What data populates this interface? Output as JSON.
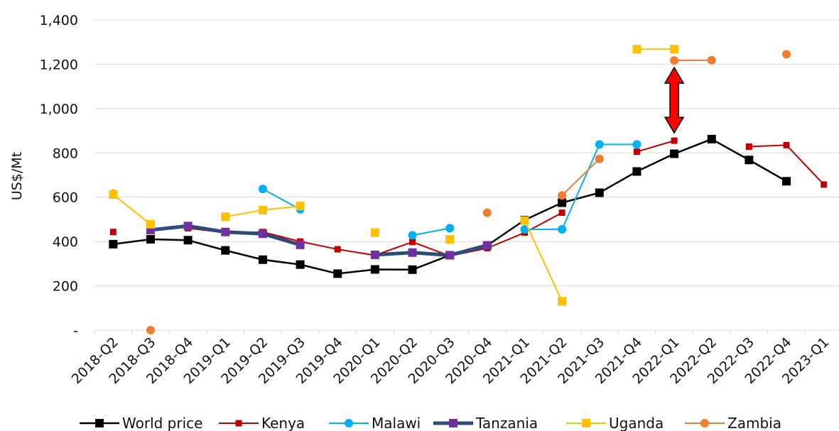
{
  "chart_data": {
    "type": "line",
    "title": "",
    "xlabel": "",
    "ylabel": "US$/Mt",
    "ylim": [
      0,
      1400
    ],
    "yticks": [
      0,
      200,
      400,
      600,
      800,
      1000,
      1200,
      1400
    ],
    "ytick_labels": [
      "-",
      "200",
      "400",
      "600",
      "800",
      "1,000",
      "1,200",
      "1,400"
    ],
    "grid": "horizontal",
    "legend_position": "bottom",
    "categories": [
      "2018-Q2",
      "2018-Q3",
      "2018-Q4",
      "2019-Q1",
      "2019-Q2",
      "2019-Q3",
      "2019-Q4",
      "2020-Q1",
      "2020-Q2",
      "2020-Q3",
      "2020-Q4",
      "2021-Q1",
      "2021-Q2",
      "2021-Q3",
      "2021-Q4",
      "2022-Q1",
      "2022-Q2",
      "2022-Q3",
      "2022-Q4",
      "2023-Q1"
    ],
    "series": [
      {
        "name": "World price",
        "color": "#000000",
        "marker": "square",
        "width": 2.5,
        "values": [
          388,
          410,
          406,
          360,
          318,
          296,
          255,
          274,
          273,
          338,
          382,
          497,
          575,
          620,
          716,
          796,
          862,
          768,
          672,
          null
        ]
      },
      {
        "name": "Kenya",
        "color": "#C00000",
        "marker": "square-small",
        "width": 2,
        "values": [
          443,
          null,
          460,
          440,
          443,
          400,
          365,
          338,
          398,
          335,
          370,
          440,
          530,
          null,
          805,
          855,
          null,
          828,
          835,
          657
        ]
      },
      {
        "name": "Malawi",
        "color": "#00B0F0",
        "marker": "circle",
        "width": 2,
        "values": [
          615,
          null,
          null,
          null,
          637,
          545,
          null,
          null,
          428,
          460,
          null,
          455,
          455,
          838,
          838,
          null,
          null,
          null,
          null,
          null
        ]
      },
      {
        "name": "Tanzania",
        "color": "#7030A0",
        "marker": "square",
        "width": 5,
        "line_color": "#2F4B7C",
        "values": [
          null,
          452,
          470,
          443,
          435,
          385,
          null,
          340,
          350,
          338,
          383,
          null,
          null,
          null,
          null,
          null,
          null,
          null,
          null,
          null
        ]
      },
      {
        "name": "Uganda",
        "color": "#FFC000",
        "marker": "square",
        "width": 2,
        "values": [
          612,
          478,
          null,
          512,
          542,
          560,
          null,
          440,
          null,
          410,
          null,
          495,
          130,
          null,
          1268,
          1268,
          null,
          null,
          null,
          null
        ]
      },
      {
        "name": "Zambia",
        "color": "#ED7D31",
        "marker": "circle",
        "width": 2,
        "values": [
          null,
          0,
          null,
          null,
          null,
          null,
          null,
          null,
          null,
          null,
          530,
          null,
          608,
          773,
          null,
          1217,
          1218,
          null,
          1245,
          null
        ]
      }
    ],
    "annotation": {
      "type": "double-arrow",
      "color": "#FF0000",
      "category": "2022-Q1",
      "from": 890,
      "to": 1185
    }
  }
}
